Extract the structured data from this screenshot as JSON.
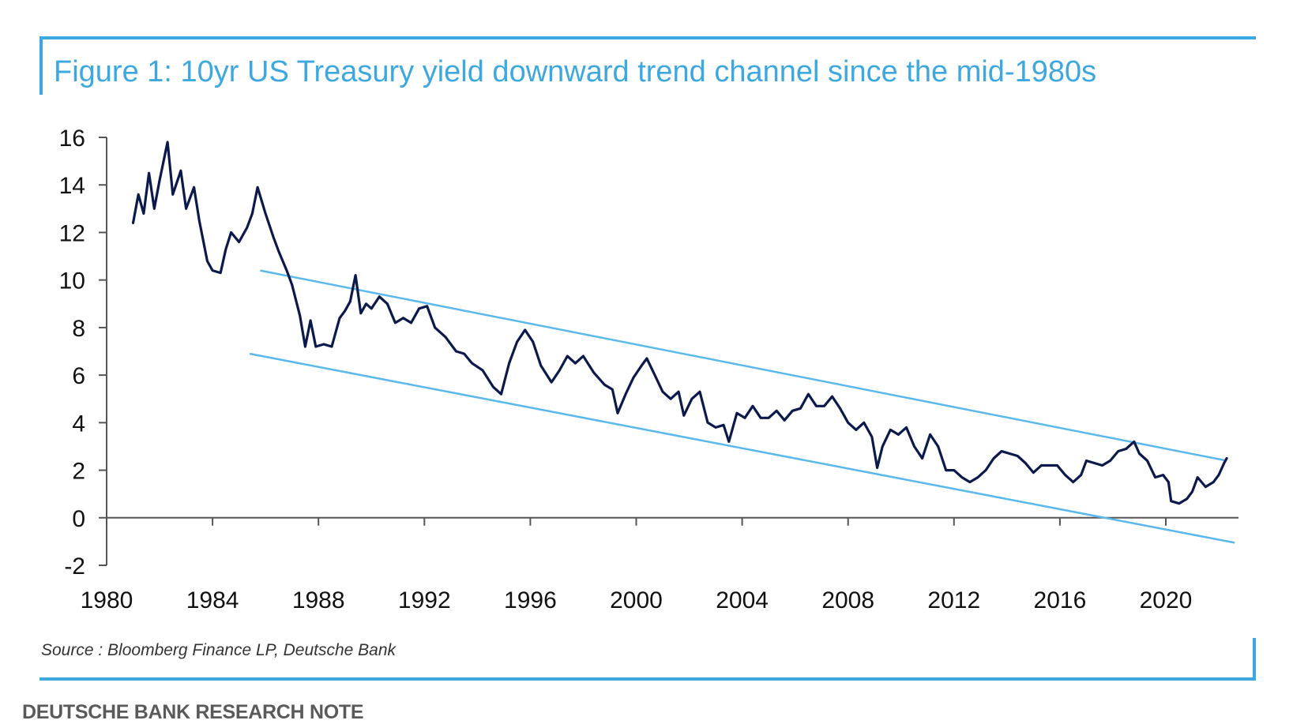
{
  "title": "Figure 1: 10yr US Treasury yield downward trend channel since the mid-1980s",
  "source": "Source : Bloomberg Finance LP, Deutsche Bank",
  "footer": "DEUTSCHE BANK RESEARCH NOTE",
  "colors": {
    "accent": "#3da8e0",
    "series": "#0b1a4a",
    "channel": "#5ab8ec",
    "axis": "#555555"
  },
  "chart_data": {
    "type": "line",
    "title": "Figure 1: 10yr US Treasury yield downward trend channel since the mid-1980s",
    "xlabel": "",
    "ylabel": "",
    "xlim": [
      1980,
      2022.6
    ],
    "ylim": [
      -2,
      16
    ],
    "x_ticks": [
      1980,
      1984,
      1988,
      1992,
      1996,
      2000,
      2004,
      2008,
      2012,
      2016,
      2020
    ],
    "y_ticks": [
      16,
      14,
      12,
      10,
      8,
      6,
      4,
      2,
      0,
      -2
    ],
    "grid": false,
    "series": [
      {
        "values": [
          [
            1981.0,
            12.4
          ],
          [
            1981.2,
            13.6
          ],
          [
            1981.4,
            12.8
          ],
          [
            1981.6,
            14.5
          ],
          [
            1981.8,
            13.0
          ],
          [
            1982.0,
            14.2
          ],
          [
            1982.3,
            15.8
          ],
          [
            1982.5,
            13.6
          ],
          [
            1982.8,
            14.6
          ],
          [
            1983.0,
            13.0
          ],
          [
            1983.3,
            13.9
          ],
          [
            1983.5,
            12.5
          ],
          [
            1983.8,
            10.8
          ],
          [
            1984.0,
            10.4
          ],
          [
            1984.3,
            10.3
          ],
          [
            1984.5,
            11.3
          ],
          [
            1984.7,
            12.0
          ],
          [
            1985.0,
            11.6
          ],
          [
            1985.3,
            12.2
          ],
          [
            1985.5,
            12.8
          ],
          [
            1985.7,
            13.9
          ],
          [
            1986.0,
            12.8
          ],
          [
            1986.3,
            11.8
          ],
          [
            1986.5,
            11.2
          ],
          [
            1986.8,
            10.4
          ],
          [
            1987.0,
            9.8
          ],
          [
            1987.3,
            8.5
          ],
          [
            1987.5,
            7.2
          ],
          [
            1987.7,
            8.3
          ],
          [
            1987.9,
            7.2
          ],
          [
            1988.2,
            7.3
          ],
          [
            1988.5,
            7.2
          ],
          [
            1988.8,
            8.4
          ],
          [
            1989.0,
            8.7
          ],
          [
            1989.2,
            9.1
          ],
          [
            1989.4,
            10.2
          ],
          [
            1989.6,
            8.6
          ],
          [
            1989.8,
            9.0
          ],
          [
            1990.0,
            8.8
          ],
          [
            1990.3,
            9.3
          ],
          [
            1990.6,
            9.0
          ],
          [
            1990.9,
            8.2
          ],
          [
            1991.2,
            8.4
          ],
          [
            1991.5,
            8.2
          ],
          [
            1991.8,
            8.8
          ],
          [
            1992.1,
            8.9
          ],
          [
            1992.4,
            8.0
          ],
          [
            1992.8,
            7.6
          ],
          [
            1993.2,
            7.0
          ],
          [
            1993.5,
            6.9
          ],
          [
            1993.8,
            6.5
          ],
          [
            1994.2,
            6.2
          ],
          [
            1994.6,
            5.5
          ],
          [
            1994.9,
            5.2
          ],
          [
            1995.2,
            6.5
          ],
          [
            1995.5,
            7.4
          ],
          [
            1995.8,
            7.9
          ],
          [
            1996.1,
            7.4
          ],
          [
            1996.4,
            6.4
          ],
          [
            1996.8,
            5.7
          ],
          [
            1997.1,
            6.2
          ],
          [
            1997.4,
            6.8
          ],
          [
            1997.7,
            6.5
          ],
          [
            1998.0,
            6.8
          ],
          [
            1998.4,
            6.1
          ],
          [
            1998.8,
            5.6
          ],
          [
            1999.1,
            5.4
          ],
          [
            1999.3,
            4.4
          ],
          [
            1999.6,
            5.2
          ],
          [
            1999.9,
            5.9
          ],
          [
            2000.2,
            6.4
          ],
          [
            2000.4,
            6.7
          ],
          [
            2000.7,
            6.0
          ],
          [
            2001.0,
            5.3
          ],
          [
            2001.3,
            5.0
          ],
          [
            2001.6,
            5.3
          ],
          [
            2001.8,
            4.3
          ],
          [
            2002.1,
            5.0
          ],
          [
            2002.4,
            5.3
          ],
          [
            2002.7,
            4.0
          ],
          [
            2003.0,
            3.8
          ],
          [
            2003.3,
            3.9
          ],
          [
            2003.5,
            3.2
          ],
          [
            2003.8,
            4.4
          ],
          [
            2004.1,
            4.2
          ],
          [
            2004.4,
            4.7
          ],
          [
            2004.7,
            4.2
          ],
          [
            2005.0,
            4.2
          ],
          [
            2005.3,
            4.5
          ],
          [
            2005.6,
            4.1
          ],
          [
            2005.9,
            4.5
          ],
          [
            2006.2,
            4.6
          ],
          [
            2006.5,
            5.2
          ],
          [
            2006.8,
            4.7
          ],
          [
            2007.1,
            4.7
          ],
          [
            2007.4,
            5.1
          ],
          [
            2007.7,
            4.6
          ],
          [
            2008.0,
            4.0
          ],
          [
            2008.3,
            3.7
          ],
          [
            2008.6,
            4.0
          ],
          [
            2008.9,
            3.4
          ],
          [
            2009.1,
            2.1
          ],
          [
            2009.3,
            3.0
          ],
          [
            2009.6,
            3.7
          ],
          [
            2009.9,
            3.5
          ],
          [
            2010.2,
            3.8
          ],
          [
            2010.5,
            3.0
          ],
          [
            2010.8,
            2.5
          ],
          [
            2011.1,
            3.5
          ],
          [
            2011.4,
            3.0
          ],
          [
            2011.7,
            2.0
          ],
          [
            2012.0,
            2.0
          ],
          [
            2012.3,
            1.7
          ],
          [
            2012.6,
            1.5
          ],
          [
            2012.9,
            1.7
          ],
          [
            2013.2,
            2.0
          ],
          [
            2013.5,
            2.5
          ],
          [
            2013.8,
            2.8
          ],
          [
            2014.1,
            2.7
          ],
          [
            2014.4,
            2.6
          ],
          [
            2014.7,
            2.3
          ],
          [
            2015.0,
            1.9
          ],
          [
            2015.3,
            2.2
          ],
          [
            2015.6,
            2.2
          ],
          [
            2015.9,
            2.2
          ],
          [
            2016.2,
            1.8
          ],
          [
            2016.5,
            1.5
          ],
          [
            2016.8,
            1.8
          ],
          [
            2017.0,
            2.4
          ],
          [
            2017.3,
            2.3
          ],
          [
            2017.6,
            2.2
          ],
          [
            2017.9,
            2.4
          ],
          [
            2018.2,
            2.8
          ],
          [
            2018.5,
            2.9
          ],
          [
            2018.8,
            3.2
          ],
          [
            2019.0,
            2.7
          ],
          [
            2019.3,
            2.4
          ],
          [
            2019.6,
            1.7
          ],
          [
            2019.9,
            1.8
          ],
          [
            2020.1,
            1.5
          ],
          [
            2020.2,
            0.7
          ],
          [
            2020.5,
            0.6
          ],
          [
            2020.8,
            0.8
          ],
          [
            2021.0,
            1.1
          ],
          [
            2021.2,
            1.7
          ],
          [
            2021.5,
            1.3
          ],
          [
            2021.8,
            1.5
          ],
          [
            2022.0,
            1.8
          ],
          [
            2022.2,
            2.3
          ],
          [
            2022.3,
            2.5
          ]
        ]
      }
    ],
    "channel_lines": [
      {
        "from": [
          1985.8,
          10.4
        ],
        "to": [
          2022.3,
          2.4
        ]
      },
      {
        "from": [
          1985.4,
          6.9
        ],
        "to": [
          2022.6,
          -1.05
        ]
      }
    ]
  }
}
